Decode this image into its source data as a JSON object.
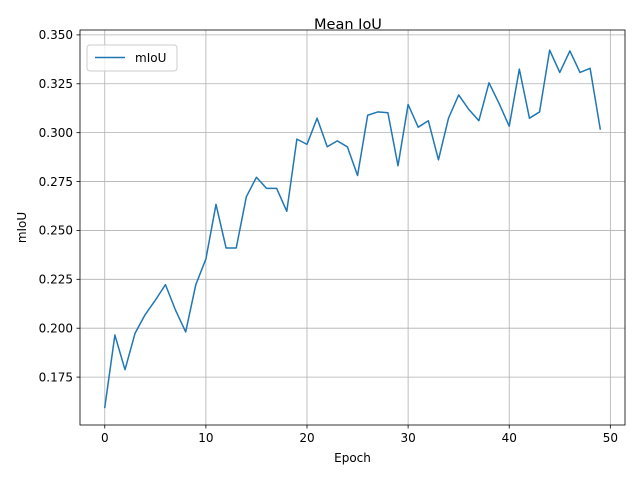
{
  "chart_data": {
    "type": "line",
    "title": "Mean IoU",
    "xlabel": "Epoch",
    "ylabel": "mIoU",
    "xlim": [
      -2.45,
      51.45
    ],
    "ylim": [
      0.1505,
      0.3525
    ],
    "xticks": [
      0,
      10,
      20,
      30,
      40,
      50
    ],
    "yticks": [
      0.175,
      0.2,
      0.225,
      0.25,
      0.275,
      0.3,
      0.325,
      0.35
    ],
    "ytick_labels": [
      "0.175",
      "0.200",
      "0.225",
      "0.250",
      "0.275",
      "0.300",
      "0.325",
      "0.350"
    ],
    "grid": true,
    "legend_position": "upper-left",
    "series": [
      {
        "name": "mIoU",
        "color": "#1f77b4",
        "x": [
          0,
          1,
          2,
          3,
          4,
          5,
          6,
          7,
          8,
          9,
          10,
          11,
          12,
          13,
          14,
          15,
          16,
          17,
          18,
          19,
          20,
          21,
          22,
          23,
          24,
          25,
          26,
          27,
          28,
          29,
          30,
          31,
          32,
          33,
          34,
          35,
          36,
          37,
          38,
          39,
          40,
          41,
          42,
          43,
          44,
          45,
          46,
          47,
          48,
          49
        ],
        "values": [
          0.1595,
          0.1965,
          0.1788,
          0.1975,
          0.207,
          0.2143,
          0.2223,
          0.2092,
          0.1981,
          0.2222,
          0.2354,
          0.2633,
          0.241,
          0.241,
          0.2672,
          0.2772,
          0.2715,
          0.2715,
          0.2598,
          0.2967,
          0.294,
          0.3074,
          0.2928,
          0.2958,
          0.2927,
          0.2781,
          0.3089,
          0.3106,
          0.3102,
          0.2831,
          0.3144,
          0.3028,
          0.3061,
          0.2861,
          0.3075,
          0.3193,
          0.3119,
          0.3061,
          0.3255,
          0.3149,
          0.3033,
          0.3325,
          0.3074,
          0.3106,
          0.3422,
          0.3308,
          0.3418,
          0.3308,
          0.3329,
          0.3019
        ]
      }
    ]
  }
}
